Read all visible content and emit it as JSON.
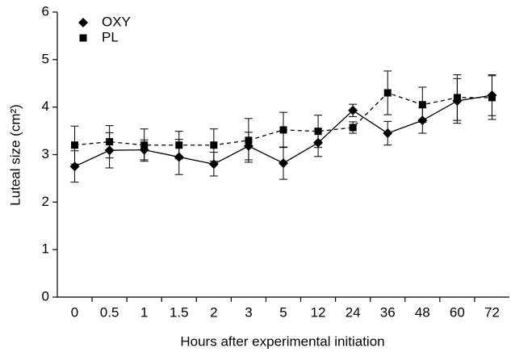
{
  "chart_data": {
    "type": "line",
    "x_label": "Hours after experimental initiation",
    "y_label": "Luteal size (cm²)",
    "categories": [
      "0",
      "0.5",
      "1",
      "1.5",
      "2",
      "3",
      "5",
      "12",
      "24",
      "36",
      "48",
      "60",
      "72"
    ],
    "series": [
      {
        "name": "OXY",
        "color": "#000000",
        "marker": "diamond",
        "line_style": "solid",
        "values": [
          2.75,
          3.09,
          3.1,
          2.95,
          2.8,
          3.18,
          2.82,
          3.25,
          3.93,
          3.45,
          3.72,
          4.13,
          4.25
        ],
        "errors": [
          0.33,
          0.37,
          0.21,
          0.37,
          0.25,
          0.29,
          0.34,
          0.29,
          0.13,
          0.25,
          0.27,
          0.47,
          0.43
        ]
      },
      {
        "name": "PL",
        "color": "#000000",
        "marker": "square",
        "line_style": "dashed",
        "values": [
          3.2,
          3.27,
          3.2,
          3.2,
          3.2,
          3.3,
          3.52,
          3.49,
          3.57,
          4.3,
          4.05,
          4.2,
          4.2
        ],
        "errors": [
          0.4,
          0.34,
          0.34,
          0.29,
          0.34,
          0.46,
          0.37,
          0.34,
          0.12,
          0.46,
          0.37,
          0.48,
          0.46
        ]
      }
    ],
    "ylim": [
      0,
      6
    ],
    "yticks": [
      0,
      1,
      2,
      3,
      4,
      5,
      6
    ],
    "grid": false,
    "legend": "upper left"
  }
}
